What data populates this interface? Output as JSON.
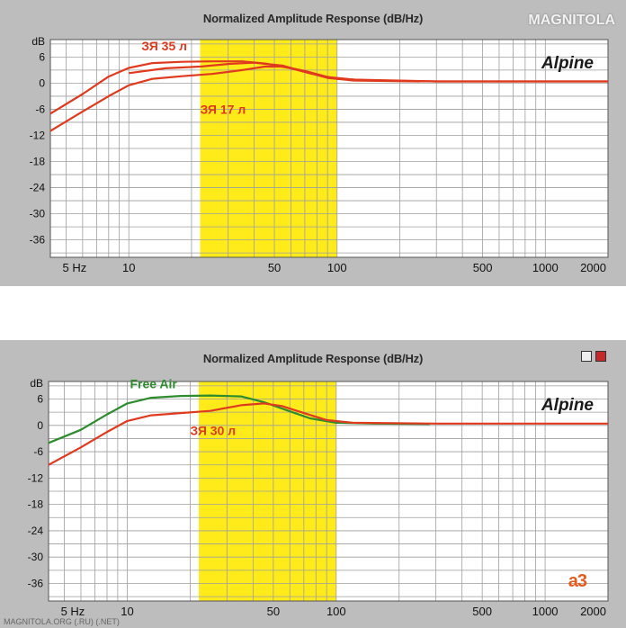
{
  "watermark": "MAGNITOLA",
  "logo": "a3",
  "footer": "MAGNITOLA.ORG (.RU) (.NET)",
  "colors": {
    "panel": "#bdbdbd",
    "plot_bg": "#ffffff",
    "grid": "#9e9e9e",
    "highlight": "#ffeb1a",
    "red": "#e03a1e",
    "green": "#2e8b2e"
  },
  "chart_data": [
    {
      "type": "line",
      "title": "Normalized Amplitude Response (dB/Hz)",
      "ylabel": "dB",
      "brand": "Alpine",
      "x_scale": "log",
      "xlim": [
        4.2,
        2000
      ],
      "ylim": [
        -40,
        10
      ],
      "xticks": [
        {
          "v": 5,
          "label": "5 Hz"
        },
        {
          "v": 10,
          "label": "10"
        },
        {
          "v": 50,
          "label": "50"
        },
        {
          "v": 100,
          "label": "100"
        },
        {
          "v": 500,
          "label": "500"
        },
        {
          "v": 1000,
          "label": "1000"
        },
        {
          "v": 2000,
          "label": "2000"
        }
      ],
      "yticks": [
        6,
        0,
        -6,
        -12,
        -18,
        -24,
        -30,
        -36
      ],
      "highlight_range": [
        22,
        100
      ],
      "series": [
        {
          "name": "ЗЯ 35 л",
          "color": "#e03a1e",
          "points": [
            [
              4.2,
              -7
            ],
            [
              6,
              -2.5
            ],
            [
              8,
              1.5
            ],
            [
              10,
              3.5
            ],
            [
              13,
              4.6
            ],
            [
              18,
              4.9
            ],
            [
              25,
              5
            ],
            [
              35,
              5
            ],
            [
              45,
              4.5
            ],
            [
              60,
              3.4
            ],
            [
              75,
              2.2
            ],
            [
              100,
              1
            ],
            [
              150,
              0.6
            ],
            [
              300,
              0.4
            ],
            [
              2000,
              0.4
            ]
          ]
        },
        {
          "name": "ЗЯ 17 л",
          "color": "#e03a1e",
          "points": [
            [
              4.2,
              -11
            ],
            [
              6,
              -6.5
            ],
            [
              8,
              -3
            ],
            [
              10,
              -0.5
            ],
            [
              13,
              1
            ],
            [
              18,
              1.6
            ],
            [
              25,
              2.1
            ],
            [
              35,
              3
            ],
            [
              45,
              3.8
            ],
            [
              55,
              3.8
            ],
            [
              70,
              2.8
            ],
            [
              90,
              1.4
            ],
            [
              120,
              0.8
            ],
            [
              300,
              0.4
            ],
            [
              2000,
              0.4
            ]
          ]
        },
        {
          "name": "",
          "color": "#e03a1e",
          "points": [
            [
              10,
              2.3
            ],
            [
              15,
              3.4
            ],
            [
              22,
              3.8
            ],
            [
              30,
              4.4
            ],
            [
              40,
              4.7
            ],
            [
              55,
              4
            ],
            [
              70,
              2.6
            ],
            [
              90,
              1.2
            ],
            [
              120,
              0.6
            ],
            [
              250,
              0.4
            ]
          ]
        }
      ],
      "annotations": [
        {
          "text": "ЗЯ 35 л",
          "color": "#e03a1e",
          "x": 11.5,
          "y": 7.5
        },
        {
          "text": "ЗЯ 17 л",
          "color": "#e03a1e",
          "x": 22,
          "y": -7
        }
      ]
    },
    {
      "type": "line",
      "title": "Normalized Amplitude Response (dB/Hz)",
      "ylabel": "dB",
      "brand": "Alpine",
      "x_scale": "log",
      "xlim": [
        4.2,
        2000
      ],
      "ylim": [
        -40,
        10
      ],
      "xticks": [
        {
          "v": 5,
          "label": "5 Hz"
        },
        {
          "v": 10,
          "label": "10"
        },
        {
          "v": 50,
          "label": "50"
        },
        {
          "v": 100,
          "label": "100"
        },
        {
          "v": 500,
          "label": "500"
        },
        {
          "v": 1000,
          "label": "1000"
        },
        {
          "v": 2000,
          "label": "2000"
        }
      ],
      "yticks": [
        6,
        0,
        -6,
        -12,
        -18,
        -24,
        -30,
        -36
      ],
      "highlight_range": [
        22,
        100
      ],
      "series": [
        {
          "name": "Free Air",
          "color": "#2e8b2e",
          "points": [
            [
              4.2,
              -4
            ],
            [
              6,
              -1
            ],
            [
              8,
              2.5
            ],
            [
              10,
              5
            ],
            [
              13,
              6.3
            ],
            [
              18,
              6.7
            ],
            [
              25,
              6.8
            ],
            [
              35,
              6.6
            ],
            [
              45,
              5.3
            ],
            [
              60,
              3.2
            ],
            [
              75,
              1.6
            ],
            [
              100,
              0.6
            ],
            [
              150,
              0.4
            ],
            [
              280,
              0.3
            ]
          ]
        },
        {
          "name": "ЗЯ 30 л",
          "color": "#e03a1e",
          "points": [
            [
              4.2,
              -9
            ],
            [
              6,
              -5
            ],
            [
              8,
              -1.5
            ],
            [
              10,
              1
            ],
            [
              13,
              2.3
            ],
            [
              18,
              2.8
            ],
            [
              25,
              3.3
            ],
            [
              35,
              4.6
            ],
            [
              45,
              5
            ],
            [
              55,
              4.4
            ],
            [
              70,
              2.8
            ],
            [
              90,
              1.2
            ],
            [
              120,
              0.6
            ],
            [
              300,
              0.4
            ],
            [
              2000,
              0.4
            ]
          ]
        }
      ],
      "annotations": [
        {
          "text": "Free Air",
          "color": "#2e8b2e",
          "x": 10.3,
          "y": 8.5
        },
        {
          "text": "ЗЯ 30 л",
          "color": "#e03a1e",
          "x": 20,
          "y": -2.2
        }
      ]
    }
  ]
}
